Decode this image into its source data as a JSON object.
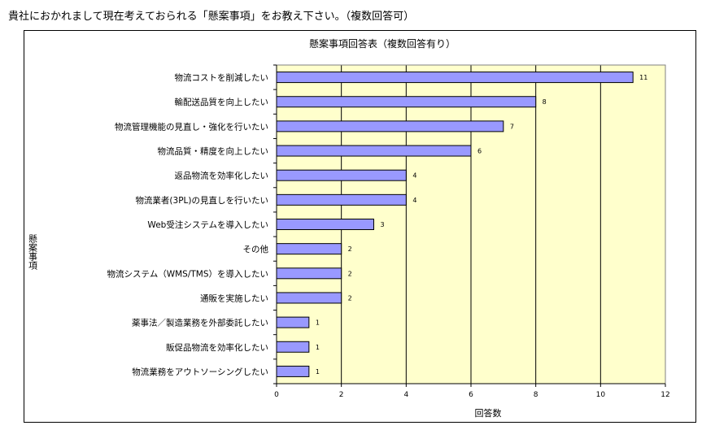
{
  "question": "貴社におかれまして現在考えておられる「懸案事項」をお教え下さい。（複数回答可）",
  "chart_data": {
    "type": "bar",
    "orientation": "horizontal",
    "title": "懸案事項回答表（複数回答有り）",
    "xlabel": "回答数",
    "ylabel": "懸案事項",
    "categories": [
      "物流コストを削減したい",
      "輸配送品質を向上したい",
      "物流管理機能の見直し・強化を行いたい",
      "物流品質・精度を向上したい",
      "返品物流を効率化したい",
      "物流業者(3PL)の見直しを行いたい",
      "Web受注システムを導入したい",
      "その他",
      "物流システム（WMS/TMS）を導入したい",
      "通販を実施したい",
      "薬事法／製造業務を外部委託したい",
      "販促品物流を効率化したい",
      "物流業務をアウトソーシングしたい"
    ],
    "values": [
      11,
      8,
      7,
      6,
      4,
      4,
      3,
      2,
      2,
      2,
      1,
      1,
      1
    ],
    "xlim": [
      0,
      12
    ],
    "xticks": [
      0,
      2,
      4,
      6,
      8,
      10,
      12
    ],
    "grid": true,
    "legend": "none",
    "colors": {
      "bar_fill": "#9999ff",
      "bar_stroke": "#000000",
      "plot_bg": "#ffffcc",
      "grid": "#000000"
    }
  }
}
